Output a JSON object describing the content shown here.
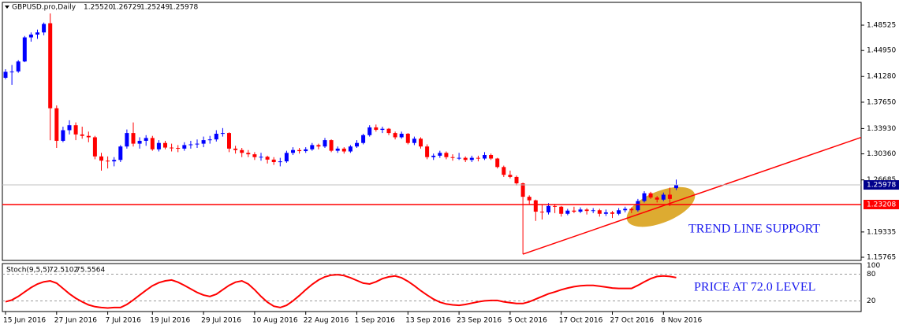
{
  "chart_data": [
    {
      "type": "candlestick",
      "title": "GBPUSD.pro,Daily",
      "ohlc_labels": [
        "1.25520",
        "1.26729",
        "1.25249",
        "1.25978"
      ],
      "up_color": "#0000ff",
      "down_color": "#ff0000",
      "ylim": [
        1.15432,
        1.51745
      ],
      "yticks": [
        1.48525,
        {
          "value": 1.4495,
          "label": "1.44950"
        },
        {
          "value": 1.4128,
          "label": "1.41280"
        },
        {
          "value": 1.3765,
          "label": "1.37650"
        },
        {
          "value": 1.3393,
          "label": "1.33930"
        },
        {
          "value": 1.3036,
          "label": "1.30360"
        },
        1.26685,
        1.19335,
        1.15765
      ],
      "hline": {
        "value": 1.23208,
        "color": "#ff0000"
      },
      "trendline": {
        "x": [
          81,
          134
        ],
        "y": [
          1.162,
          1.327
        ],
        "color": "#ff0000"
      },
      "annotation": "TREND LINE SUPPORT",
      "categories": [
        "15 Jun 2016",
        null,
        null,
        null,
        null,
        null,
        null,
        null,
        "27 Jun 2016",
        null,
        null,
        null,
        null,
        null,
        null,
        null,
        "7 Jul 2016",
        null,
        null,
        null,
        null,
        null,
        null,
        "19 Jul 2016",
        null,
        null,
        null,
        null,
        null,
        null,
        null,
        "29 Jul 2016",
        null,
        null,
        null,
        null,
        null,
        null,
        null,
        "10 Aug 2016",
        null,
        null,
        null,
        null,
        null,
        null,
        null,
        "22 Aug 2016",
        null,
        null,
        null,
        null,
        null,
        null,
        null,
        "1 Sep 2016",
        null,
        null,
        null,
        null,
        null,
        null,
        null,
        "13 Sep 2016",
        null,
        null,
        null,
        null,
        null,
        null,
        null,
        "23 Sep 2016",
        null,
        null,
        null,
        null,
        null,
        null,
        null,
        "5 Oct 2016",
        null,
        null,
        null,
        null,
        null,
        null,
        null,
        "17 Oct 2016",
        null,
        null,
        null,
        null,
        null,
        null,
        null,
        "27 Oct 2016",
        null,
        null,
        null,
        null,
        null,
        null,
        null,
        "8 Nov 2016",
        null,
        null
      ],
      "candles": [
        [
          1.411,
          1.423,
          1.409,
          1.4195
        ],
        [
          1.4195,
          1.429,
          1.401,
          1.42
        ],
        [
          1.42,
          1.436,
          1.418,
          1.434
        ],
        [
          1.434,
          1.47,
          1.433,
          1.468
        ],
        [
          1.468,
          1.475,
          1.462,
          1.472
        ],
        [
          1.472,
          1.479,
          1.466,
          1.475
        ],
        [
          1.475,
          1.489,
          1.471,
          1.487
        ],
        [
          1.488,
          1.5018,
          1.3229,
          1.368
        ],
        [
          1.368,
          1.372,
          1.312,
          1.322
        ],
        [
          1.322,
          1.342,
          1.32,
          1.337
        ],
        [
          1.337,
          1.351,
          1.331,
          1.344
        ],
        [
          1.344,
          1.348,
          1.323,
          1.331
        ],
        [
          1.331,
          1.342,
          1.325,
          1.329
        ],
        [
          1.329,
          1.335,
          1.32,
          1.327
        ],
        [
          1.327,
          1.329,
          1.296,
          1.3
        ],
        [
          1.3,
          1.305,
          1.28,
          1.294
        ],
        [
          1.294,
          1.3,
          1.283,
          1.293
        ],
        [
          1.293,
          1.299,
          1.286,
          1.295
        ],
        [
          1.295,
          1.316,
          1.292,
          1.314
        ],
        [
          1.314,
          1.338,
          1.311,
          1.333
        ],
        [
          1.333,
          1.348,
          1.314,
          1.318
        ],
        [
          1.318,
          1.327,
          1.311,
          1.322
        ],
        [
          1.322,
          1.33,
          1.315,
          1.326
        ],
        [
          1.326,
          1.329,
          1.308,
          1.31
        ],
        [
          1.31,
          1.323,
          1.307,
          1.319
        ],
        [
          1.319,
          1.322,
          1.31,
          1.3125
        ],
        [
          1.3125,
          1.318,
          1.307,
          1.312
        ],
        [
          1.312,
          1.316,
          1.306,
          1.311
        ],
        [
          1.311,
          1.32,
          1.308,
          1.316
        ],
        [
          1.316,
          1.322,
          1.311,
          1.317
        ],
        [
          1.317,
          1.324,
          1.312,
          1.318
        ],
        [
          1.318,
          1.328,
          1.313,
          1.323
        ],
        [
          1.323,
          1.329,
          1.318,
          1.324
        ],
        [
          1.324,
          1.337,
          1.321,
          1.332
        ],
        [
          1.332,
          1.34,
          1.328,
          1.333
        ],
        [
          1.333,
          1.334,
          1.306,
          1.311
        ],
        [
          1.311,
          1.315,
          1.304,
          1.309
        ],
        [
          1.309,
          1.312,
          1.299,
          1.305
        ],
        [
          1.305,
          1.309,
          1.299,
          1.303
        ],
        [
          1.303,
          1.306,
          1.295,
          1.299
        ],
        [
          1.299,
          1.305,
          1.294,
          1.2995
        ],
        [
          1.2995,
          1.301,
          1.29,
          1.2955
        ],
        [
          1.2955,
          1.299,
          1.288,
          1.292
        ],
        [
          1.292,
          1.298,
          1.286,
          1.293
        ],
        [
          1.293,
          1.308,
          1.291,
          1.305
        ],
        [
          1.305,
          1.313,
          1.302,
          1.309
        ],
        [
          1.309,
          1.312,
          1.304,
          1.3075
        ],
        [
          1.3075,
          1.313,
          1.305,
          1.31
        ],
        [
          1.31,
          1.319,
          1.308,
          1.316
        ],
        [
          1.316,
          1.318,
          1.31,
          1.314
        ],
        [
          1.314,
          1.326,
          1.312,
          1.323
        ],
        [
          1.323,
          1.324,
          1.306,
          1.308
        ],
        [
          1.308,
          1.314,
          1.305,
          1.311
        ],
        [
          1.311,
          1.313,
          1.304,
          1.307
        ],
        [
          1.307,
          1.316,
          1.305,
          1.314
        ],
        [
          1.314,
          1.323,
          1.312,
          1.319
        ],
        [
          1.319,
          1.332,
          1.317,
          1.33
        ],
        [
          1.33,
          1.344,
          1.328,
          1.341
        ],
        [
          1.341,
          1.345,
          1.335,
          1.3375
        ],
        [
          1.3375,
          1.342,
          1.333,
          1.339
        ],
        [
          1.339,
          1.34,
          1.33,
          1.333
        ],
        [
          1.333,
          1.335,
          1.324,
          1.327
        ],
        [
          1.327,
          1.335,
          1.325,
          1.332
        ],
        [
          1.332,
          1.333,
          1.317,
          1.319
        ],
        [
          1.319,
          1.328,
          1.316,
          1.325
        ],
        [
          1.325,
          1.327,
          1.311,
          1.314
        ],
        [
          1.314,
          1.317,
          1.296,
          1.299
        ],
        [
          1.299,
          1.304,
          1.295,
          1.301
        ],
        [
          1.301,
          1.308,
          1.298,
          1.305
        ],
        [
          1.305,
          1.307,
          1.296,
          1.299
        ],
        [
          1.299,
          1.303,
          1.294,
          1.298
        ],
        [
          1.298,
          1.305,
          1.295,
          1.298
        ],
        [
          1.298,
          1.3,
          1.292,
          1.295
        ],
        [
          1.295,
          1.301,
          1.292,
          1.298
        ],
        [
          1.298,
          1.301,
          1.293,
          1.297
        ],
        [
          1.297,
          1.306,
          1.295,
          1.302
        ],
        [
          1.302,
          1.304,
          1.295,
          1.297
        ],
        [
          1.297,
          1.298,
          1.283,
          1.285
        ],
        [
          1.285,
          1.287,
          1.271,
          1.274
        ],
        [
          1.274,
          1.28,
          1.269,
          1.271
        ],
        [
          1.271,
          1.273,
          1.259,
          1.262
        ],
        [
          1.262,
          1.263,
          1.162,
          1.243
        ],
        [
          1.243,
          1.245,
          1.232,
          1.238
        ],
        [
          1.238,
          1.239,
          1.209,
          1.222
        ],
        [
          1.222,
          1.232,
          1.211,
          1.221
        ],
        [
          1.221,
          1.234,
          1.218,
          1.23
        ],
        [
          1.23,
          1.233,
          1.22,
          1.229
        ],
        [
          1.229,
          1.23,
          1.215,
          1.219
        ],
        [
          1.219,
          1.226,
          1.217,
          1.2235
        ],
        [
          1.2235,
          1.229,
          1.22,
          1.222
        ],
        [
          1.222,
          1.228,
          1.22,
          1.225
        ],
        [
          1.225,
          1.227,
          1.218,
          1.223
        ],
        [
          1.223,
          1.227,
          1.22,
          1.224
        ],
        [
          1.224,
          1.226,
          1.215,
          1.219
        ],
        [
          1.219,
          1.225,
          1.216,
          1.221
        ],
        [
          1.221,
          1.223,
          1.213,
          1.219
        ],
        [
          1.219,
          1.227,
          1.217,
          1.224
        ],
        [
          1.224,
          1.229,
          1.221,
          1.226
        ],
        [
          1.226,
          1.228,
          1.22,
          1.224
        ],
        [
          1.224,
          1.24,
          1.222,
          1.237
        ],
        [
          1.237,
          1.251,
          1.235,
          1.248
        ],
        [
          1.248,
          1.25,
          1.24,
          1.242
        ],
        [
          1.242,
          1.244,
          1.235,
          1.239
        ],
        [
          1.239,
          1.249,
          1.237,
          1.246
        ],
        [
          1.246,
          1.256,
          1.23,
          1.24
        ],
        [
          1.2552,
          1.26729,
          1.25249,
          1.25978
        ]
      ]
    },
    {
      "type": "line",
      "title": "Stoch(9,5,5)",
      "main_value": 72.5102,
      "signal_value": 75.5564,
      "color": "#ff0000",
      "ylim": [
        -4,
        104
      ],
      "yticks": [
        100,
        80,
        20
      ],
      "levels": [
        80,
        20
      ],
      "annotation": "PRICE AT 72.0 LEVEL",
      "values": [
        18,
        22,
        30,
        40,
        50,
        58,
        63,
        65,
        60,
        48,
        36,
        26,
        18,
        11,
        7,
        5,
        4,
        5,
        5,
        12,
        22,
        33,
        44,
        54,
        61,
        65,
        67,
        62,
        55,
        47,
        39,
        33,
        30,
        35,
        45,
        55,
        62,
        65,
        58,
        45,
        30,
        17,
        8,
        5,
        10,
        20,
        32,
        45,
        57,
        67,
        74,
        78,
        79,
        77,
        72,
        66,
        60,
        58,
        63,
        70,
        74,
        76,
        72,
        64,
        54,
        43,
        33,
        24,
        17,
        13,
        11,
        10,
        12,
        15,
        18,
        20,
        21,
        21,
        18,
        16,
        14,
        14,
        18,
        24,
        30,
        36,
        40,
        45,
        49,
        52,
        54,
        55,
        55,
        53,
        51,
        49,
        48,
        48,
        48,
        55,
        63,
        70,
        75,
        76,
        75,
        72.5102
      ]
    }
  ]
}
